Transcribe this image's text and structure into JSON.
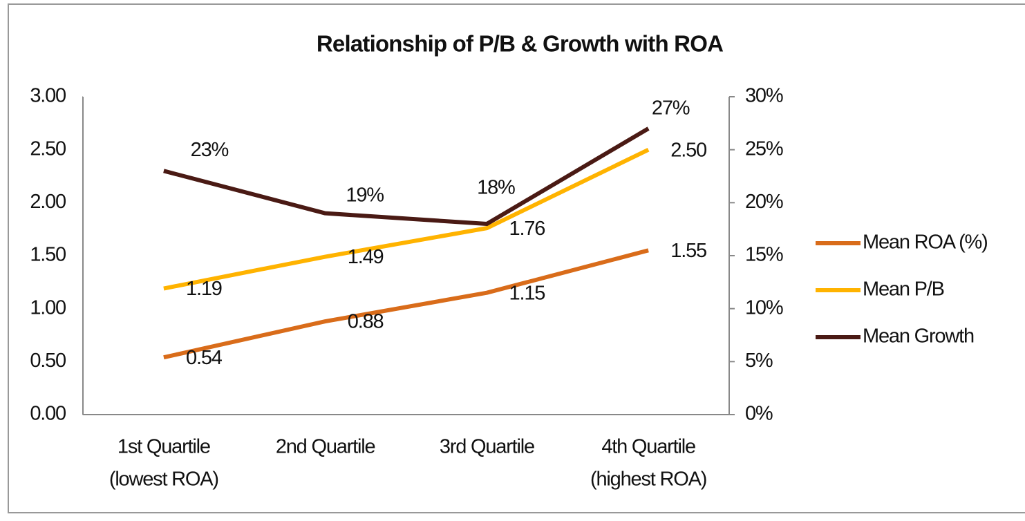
{
  "chart_data": {
    "type": "line",
    "title": "Relationship of P/B & Growth with ROA",
    "categories": [
      [
        "1st Quartile",
        "(lowest ROA)"
      ],
      [
        "2nd Quartile"
      ],
      [
        "3rd Quartile"
      ],
      [
        "4th Quartile",
        "(highest ROA)"
      ]
    ],
    "ylim": [
      0,
      3
    ],
    "yticks": [
      {
        "value": 0,
        "label": "0.00"
      },
      {
        "value": 0.5,
        "label": "0.50"
      },
      {
        "value": 1,
        "label": "1.00"
      },
      {
        "value": 1.5,
        "label": "1.50"
      },
      {
        "value": 2,
        "label": "2.00"
      },
      {
        "value": 2.5,
        "label": "2.50"
      },
      {
        "value": 3,
        "label": "3.00"
      }
    ],
    "y2lim": [
      0,
      30
    ],
    "y2ticks": [
      {
        "value": 0,
        "label": "0%"
      },
      {
        "value": 5,
        "label": "5%"
      },
      {
        "value": 10,
        "label": "10%"
      },
      {
        "value": 15,
        "label": "15%"
      },
      {
        "value": 20,
        "label": "20%"
      },
      {
        "value": 25,
        "label": "25%"
      },
      {
        "value": 30,
        "label": "30%"
      }
    ],
    "legend": "right",
    "series": [
      {
        "name": "Mean ROA (%)",
        "color": "#d96c1a",
        "values": [
          0.54,
          0.88,
          1.15,
          1.55
        ]
      },
      {
        "name": "Mean P/B",
        "color": "#ffb300",
        "values": [
          1.19,
          1.49,
          1.76,
          2.5
        ],
        "value_labels": [
          "1.19",
          "1.49",
          "1.76",
          "2.50"
        ]
      },
      {
        "name": "Mean Growth",
        "color": "#4a1a14",
        "axis": "y2",
        "values": [
          23,
          19,
          18,
          27
        ],
        "value_labels": [
          "23%",
          "19%",
          "18%",
          "27%"
        ]
      }
    ]
  }
}
